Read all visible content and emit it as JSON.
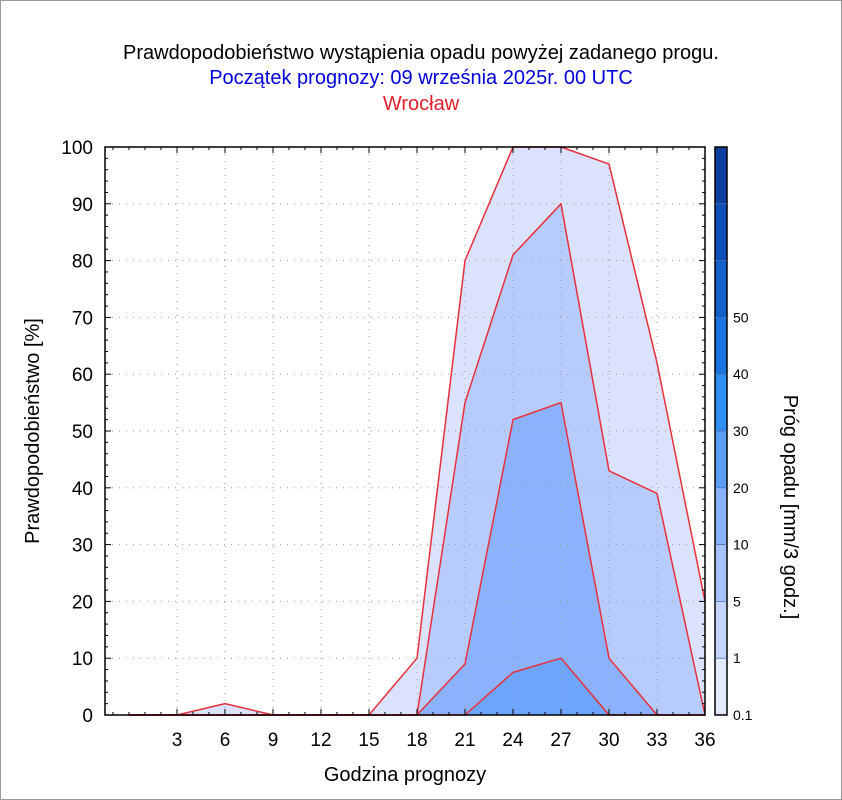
{
  "titles": {
    "main": "Prawdopodobieństwo wystąpienia opadu powyżej zadanego progu.",
    "subtitle": "Początek prognozy: 09 września 2025r. 00 UTC",
    "location": "Wrocław"
  },
  "colors": {
    "subtitle": "#0000dd",
    "location": "#e0202a",
    "outline": "#e8303c",
    "grid": "#9a9a9a"
  },
  "chart_data": {
    "type": "area",
    "title": "Prawdopodobieństwo wystąpienia opadu powyżej zadanego progu.",
    "xlabel": "Godzina prognozy",
    "ylabel": "Prawdopodobieństwo [%]",
    "xlim": [
      -1.5,
      36
    ],
    "ylim": [
      0,
      100
    ],
    "x": [
      0,
      3,
      6,
      9,
      12,
      15,
      18,
      21,
      24,
      27,
      30,
      33,
      36
    ],
    "x_ticks": [
      3,
      6,
      9,
      12,
      15,
      18,
      21,
      24,
      27,
      30,
      33,
      36
    ],
    "y_ticks": [
      0,
      10,
      20,
      30,
      40,
      50,
      60,
      70,
      80,
      90,
      100
    ],
    "grid": true,
    "series": [
      {
        "name": "0.1",
        "color": "#dbe2fe",
        "values": [
          0,
          0,
          2,
          0,
          0,
          0,
          10,
          80,
          100,
          100,
          97,
          62,
          20
        ]
      },
      {
        "name": "1",
        "color": "#b8cbfd",
        "values": [
          0,
          0,
          0,
          0,
          0,
          0,
          0,
          55,
          81,
          90,
          43,
          39,
          0
        ]
      },
      {
        "name": "5",
        "color": "#8db2fd",
        "values": [
          0,
          0,
          0,
          0,
          0,
          0,
          0,
          9,
          52,
          55,
          10,
          0,
          0
        ]
      },
      {
        "name": "10",
        "color": "#6fa4fd",
        "values": [
          0,
          0,
          0,
          0,
          0,
          0,
          0,
          0,
          7.5,
          10,
          0,
          0,
          0
        ]
      }
    ],
    "colorbar": {
      "label": "Próg opadu [mm/3 godz.]",
      "tick_labels": [
        "0.1",
        "1",
        "5",
        "10",
        "20",
        "30",
        "40",
        "50"
      ],
      "colors": [
        "#e3e9fe",
        "#c5d5fd",
        "#a8c2fc",
        "#8ab1fb",
        "#5a9ef8",
        "#2f8ff3",
        "#1a74e0",
        "#1360cc",
        "#0f4fb8",
        "#0c3fa0"
      ]
    }
  }
}
